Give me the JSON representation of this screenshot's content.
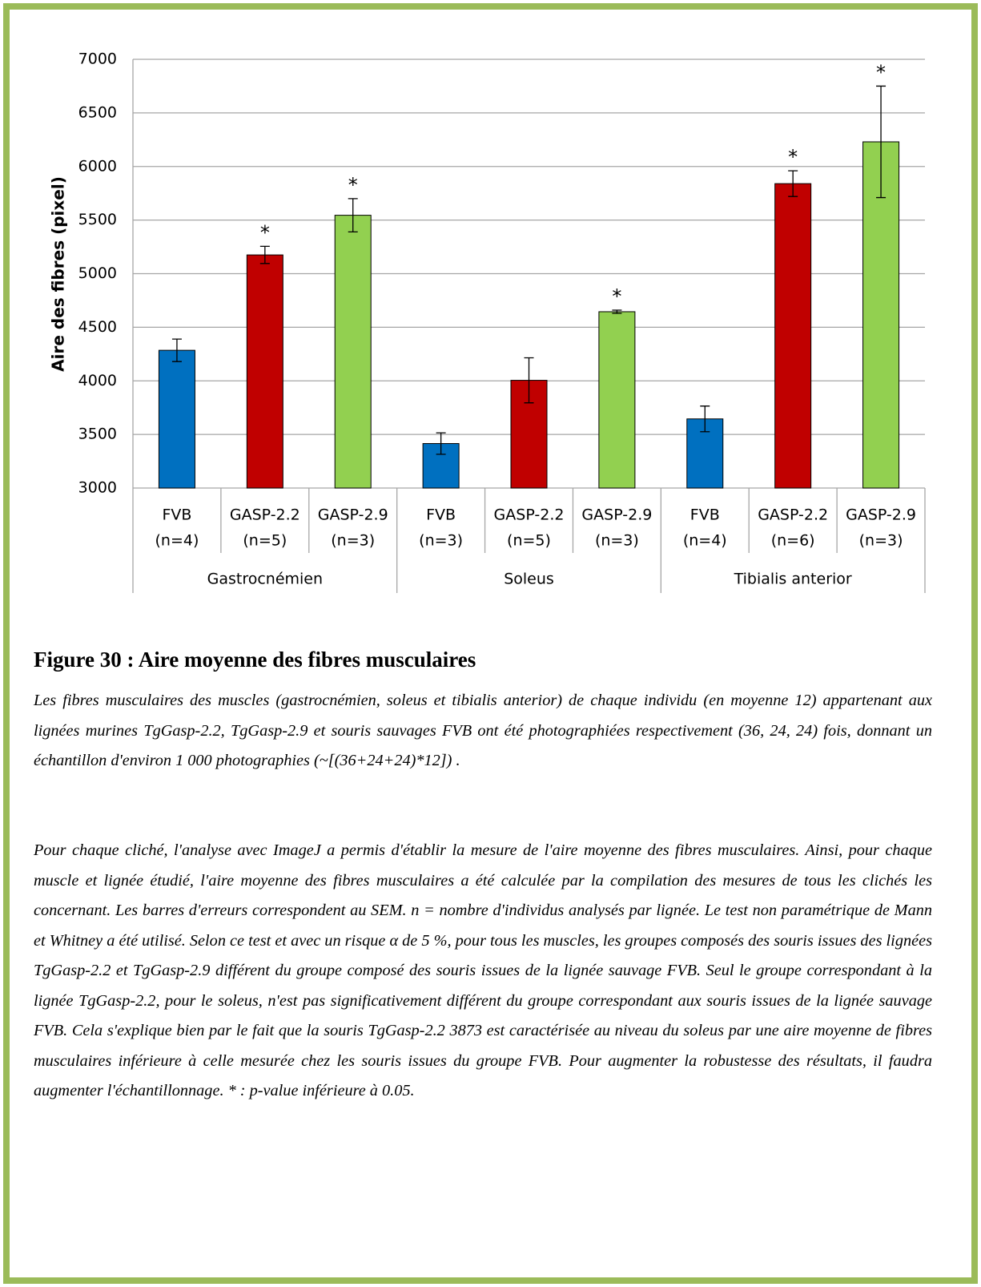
{
  "chart_data": {
    "type": "bar",
    "ylabel": "Aire des fibres (pixel)",
    "ylim": [
      3000,
      7000
    ],
    "yticks": [
      3000,
      3500,
      4000,
      4500,
      5000,
      5500,
      6000,
      6500,
      7000
    ],
    "grid": true,
    "groups": [
      {
        "name": "Gastrocnémien",
        "categories": [
          "FVB",
          "GASP-2.2",
          "GASP-2.9"
        ],
        "n": [
          "(n=4)",
          "(n=5)",
          "(n=3)"
        ],
        "values": [
          4285,
          5175,
          5545
        ],
        "errors": [
          105,
          80,
          155
        ],
        "colors": [
          "#0070c0",
          "#c00000",
          "#92d050"
        ],
        "significance": [
          null,
          "*",
          "*"
        ]
      },
      {
        "name": "Soleus",
        "categories": [
          "FVB",
          "GASP-2.2",
          "GASP-2.9"
        ],
        "n": [
          "(n=3)",
          "(n=5)",
          "(n=3)"
        ],
        "values": [
          3415,
          4005,
          4645
        ],
        "errors": [
          100,
          210,
          15
        ],
        "colors": [
          "#0070c0",
          "#c00000",
          "#92d050"
        ],
        "significance": [
          null,
          null,
          "*"
        ]
      },
      {
        "name": "Tibialis anterior",
        "categories": [
          "FVB",
          "GASP-2.2",
          "GASP-2.9"
        ],
        "n": [
          "(n=4)",
          "(n=6)",
          "(n=3)"
        ],
        "values": [
          3645,
          5840,
          6230
        ],
        "errors": [
          120,
          120,
          520
        ],
        "colors": [
          "#0070c0",
          "#c00000",
          "#92d050"
        ],
        "significance": [
          null,
          "*",
          "*"
        ]
      }
    ]
  },
  "caption": {
    "title": "Figure 30 : Aire moyenne des fibres musculaires",
    "paragraphs": [
      "Les fibres musculaires des muscles (gastrocnémien, soleus et tibialis anterior) de chaque individu (en moyenne 12) appartenant aux lignées murines TgGasp-2.2, TgGasp-2.9 et souris sauvages FVB ont été photographiées respectivement (36, 24, 24) fois, donnant un échantillon d'environ 1 000 photographies (~[(36+24+24)*12]) .",
      "Pour chaque cliché, l'analyse avec ImageJ a permis d'établir la mesure de l'aire moyenne des fibres musculaires. Ainsi, pour chaque muscle et lignée étudié, l'aire moyenne des fibres musculaires a été calculée par la compilation des mesures de tous les clichés les concernant. Les barres d'erreurs correspondent au SEM. n = nombre d'individus analysés par lignée. Le test non paramétrique de Mann et Whitney a été utilisé. Selon ce test et avec un risque α de 5 %, pour tous les muscles, les groupes composés des souris issues des lignées TgGasp-2.2 et TgGasp-2.9 différent du groupe composé des souris issues de la lignée sauvage FVB. Seul le groupe correspondant à la lignée TgGasp-2.2, pour le soleus, n'est pas significativement différent du groupe correspondant aux souris issues de la lignée sauvage FVB. Cela s'explique bien par le fait que la souris TgGasp-2.2 3873 est caractérisée au niveau du soleus par une aire moyenne de fibres musculaires inférieure à celle mesurée chez les souris issues du groupe FVB. Pour augmenter la robustesse des résultats, il faudra augmenter l'échantillonnage. * : p-value inférieure à 0.05."
    ]
  }
}
